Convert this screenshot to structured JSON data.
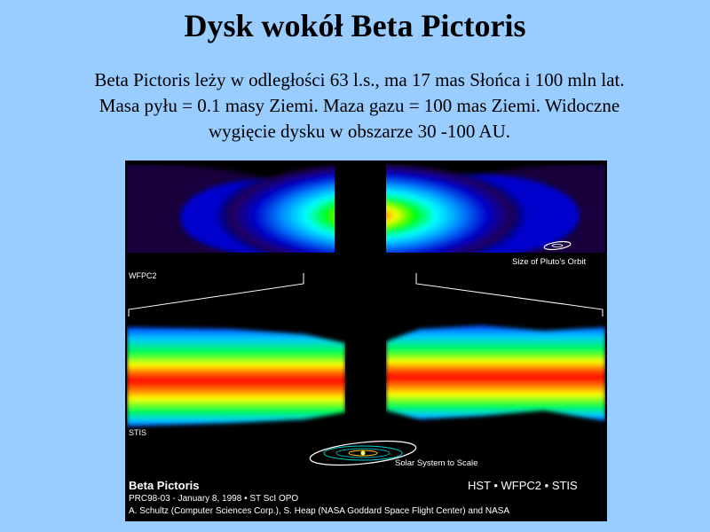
{
  "title": "Dysk wokół Beta Pictoris",
  "body_lines": [
    "Beta Pictoris leży w odległości 63 l.s., ma 17 mas Słońca i 100 mln lat.",
    "Masa pyłu = 0.1 masy Ziemi. Maza gazu = 100 mas Ziemi. Widoczne",
    "wygięcie dysku w obszarze 30 -100 AU."
  ],
  "figure": {
    "label_top_panel": "WFPC2",
    "label_bottom_panel": "STIS",
    "pluto_orbit_label": "Size of Pluto's Orbit",
    "solar_system_label": "Solar System to Scale",
    "object_name": "Beta Pictoris",
    "mission": "HST • WFPC2 • STIS",
    "release": "PRC98-03 - January 8, 1998 • ST ScI OPO",
    "credit": "A. Schultz (Computer Sciences Corp.), S. Heap (NASA Goddard Space Flight Center) and NASA"
  }
}
